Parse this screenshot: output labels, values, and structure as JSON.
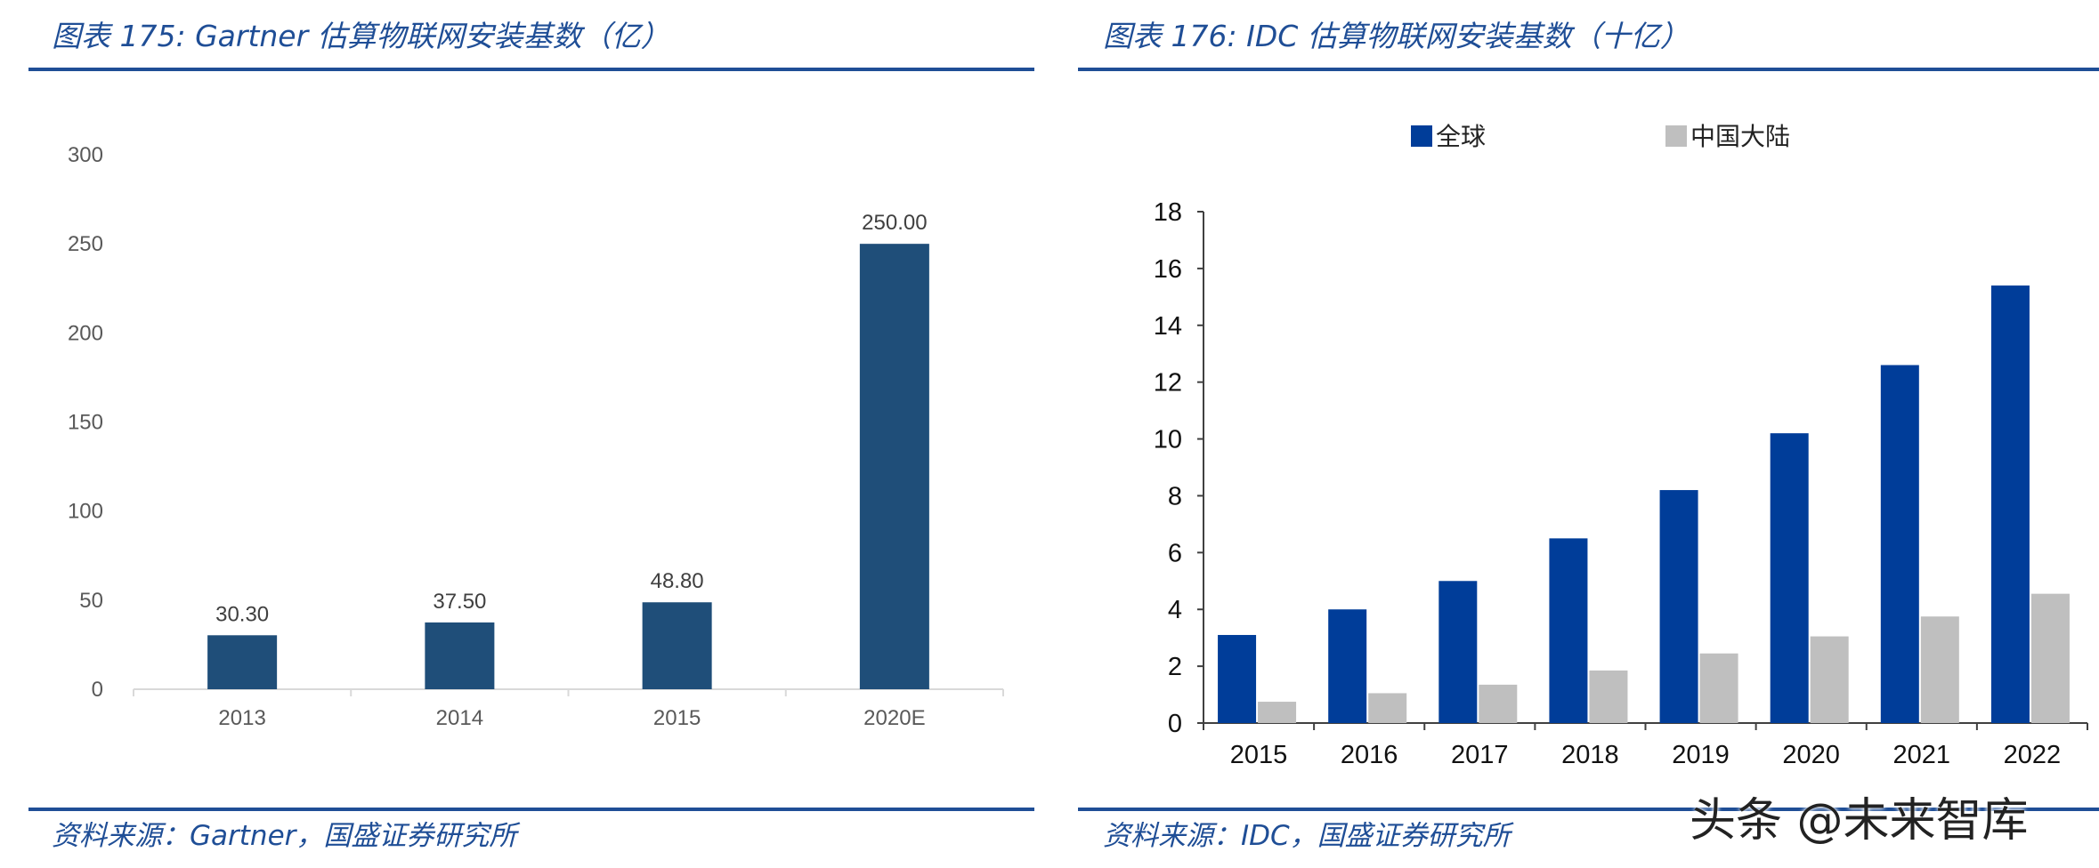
{
  "left_panel": {
    "title": "图表 175:  Gartner 估算物联网安装基数（亿）",
    "source": "资料来源：Gartner，国盛证券研究所",
    "bar_color": "#1f4e79"
  },
  "right_panel": {
    "title": "图表 176:  IDC 估算物联网安装基数（十亿）",
    "source": "资料来源：IDC，国盛证券研究所",
    "colors": [
      "#003d99",
      "#bfbfbf"
    ]
  },
  "watermark": "头条 @未来智库",
  "chart_data": [
    {
      "type": "bar",
      "title": "Gartner 估算物联网安装基数（亿）",
      "categories": [
        "2013",
        "2014",
        "2015",
        "2020E"
      ],
      "values": [
        30.3,
        37.5,
        48.8,
        250.0
      ],
      "value_labels": [
        "30.30",
        "37.50",
        "48.80",
        "250.00"
      ],
      "ylim": [
        0,
        300
      ],
      "yticks": [
        "0",
        "50",
        "100",
        "150",
        "200",
        "250",
        "300"
      ],
      "grid": false,
      "legend": "none"
    },
    {
      "type": "bar",
      "title": "IDC 估算物联网安装基数（十亿）",
      "categories": [
        "2015",
        "2016",
        "2017",
        "2018",
        "2019",
        "2020",
        "2021",
        "2022"
      ],
      "series": [
        {
          "name": "全球",
          "values": [
            3.1,
            4.0,
            5.0,
            6.5,
            8.2,
            10.2,
            12.6,
            15.4
          ]
        },
        {
          "name": "中国大陆",
          "values": [
            0.75,
            1.05,
            1.35,
            1.85,
            2.45,
            3.05,
            3.75,
            4.55
          ]
        }
      ],
      "ylim": [
        0,
        18
      ],
      "yticks": [
        "0",
        "2",
        "4",
        "6",
        "8",
        "10",
        "12",
        "14",
        "16",
        "18"
      ],
      "grid": false,
      "legend": "top"
    }
  ]
}
